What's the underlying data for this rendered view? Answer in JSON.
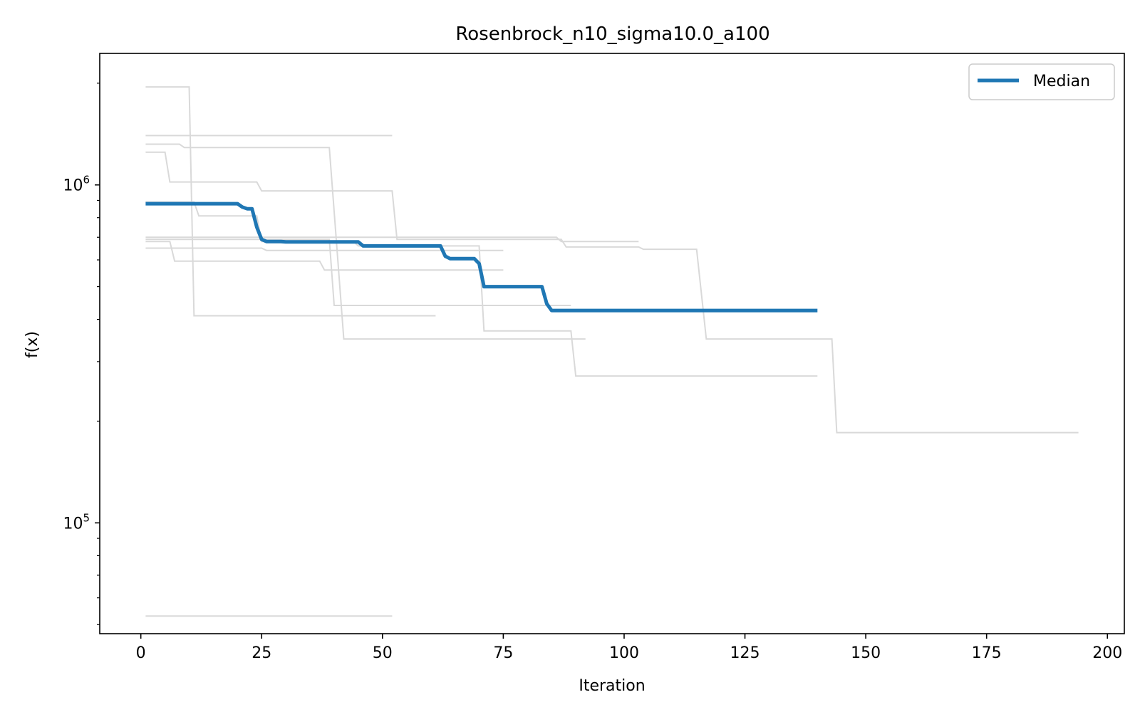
{
  "chart_data": {
    "type": "line",
    "title": "Rosenbrock_n10_sigma10.0_a100",
    "xlabel": "Iteration",
    "ylabel": "f(x)",
    "xscale": "linear",
    "yscale": "log",
    "xlim": [
      -8.5,
      203.5
    ],
    "ylim": [
      47000,
      2450000
    ],
    "xticks": [
      0,
      25,
      50,
      75,
      100,
      125,
      150,
      175,
      200
    ],
    "xtick_labels": [
      "0",
      "25",
      "50",
      "75",
      "100",
      "125",
      "150",
      "175",
      "200"
    ],
    "yticks": [
      100000,
      1000000
    ],
    "ytick_labels": [
      {
        "base": "10",
        "exp": "5"
      },
      {
        "base": "10",
        "exp": "6"
      }
    ],
    "grid": false,
    "legend": {
      "placement": "top-right",
      "entries": [
        "Median"
      ]
    },
    "colors": {
      "median": "#1f77b4",
      "runs": "#d9d9d9"
    },
    "median": {
      "name": "Median",
      "points": [
        [
          1,
          880000
        ],
        [
          20,
          880000
        ],
        [
          21,
          860000
        ],
        [
          22,
          850000
        ],
        [
          23,
          850000
        ],
        [
          24,
          750000
        ],
        [
          25,
          690000
        ],
        [
          26,
          680000
        ],
        [
          29,
          680000
        ],
        [
          30,
          678000
        ],
        [
          45,
          678000
        ],
        [
          46,
          660000
        ],
        [
          62,
          660000
        ],
        [
          63,
          615000
        ],
        [
          64,
          605000
        ],
        [
          69,
          605000
        ],
        [
          70,
          585000
        ],
        [
          71,
          500000
        ],
        [
          83,
          500000
        ],
        [
          84,
          445000
        ],
        [
          85,
          425000
        ],
        [
          140,
          425000
        ]
      ]
    },
    "runs": [
      {
        "points": [
          [
            1,
            1950000
          ],
          [
            10,
            1950000
          ],
          [
            11,
            410000
          ],
          [
            61,
            410000
          ]
        ]
      },
      {
        "points": [
          [
            1,
            1400000
          ],
          [
            52,
            1400000
          ]
        ]
      },
      {
        "points": [
          [
            1,
            1320000
          ],
          [
            8,
            1320000
          ],
          [
            9,
            1290000
          ],
          [
            39,
            1290000
          ],
          [
            42,
            350000
          ],
          [
            92,
            350000
          ]
        ]
      },
      {
        "points": [
          [
            1,
            1250000
          ],
          [
            5,
            1250000
          ],
          [
            6,
            1020000
          ],
          [
            24,
            1020000
          ],
          [
            25,
            960000
          ],
          [
            52,
            960000
          ],
          [
            53,
            690000
          ],
          [
            87,
            690000
          ],
          [
            88,
            655000
          ],
          [
            103,
            655000
          ],
          [
            104,
            645000
          ],
          [
            115,
            645000
          ],
          [
            117,
            350000
          ],
          [
            143,
            350000
          ],
          [
            144,
            185000
          ],
          [
            194,
            185000
          ]
        ]
      },
      {
        "points": [
          [
            1,
            890000
          ],
          [
            11,
            890000
          ],
          [
            12,
            810000
          ],
          [
            24,
            810000
          ],
          [
            25,
            680000
          ],
          [
            44,
            680000
          ],
          [
            45,
            660000
          ],
          [
            70,
            660000
          ],
          [
            71,
            370000
          ],
          [
            89,
            370000
          ],
          [
            90,
            272000
          ],
          [
            140,
            272000
          ]
        ]
      },
      {
        "points": [
          [
            1,
            700000
          ],
          [
            86,
            700000
          ],
          [
            87,
            680000
          ],
          [
            103,
            680000
          ]
        ]
      },
      {
        "points": [
          [
            1,
            690000
          ],
          [
            39,
            690000
          ],
          [
            40,
            440000
          ],
          [
            89,
            440000
          ]
        ]
      },
      {
        "points": [
          [
            1,
            680000
          ],
          [
            6,
            680000
          ],
          [
            7,
            595000
          ],
          [
            37,
            595000
          ],
          [
            38,
            560000
          ],
          [
            75,
            560000
          ]
        ]
      },
      {
        "points": [
          [
            1,
            650000
          ],
          [
            25,
            650000
          ],
          [
            26,
            640000
          ],
          [
            75,
            640000
          ]
        ]
      },
      {
        "points": [
          [
            1,
            53000
          ],
          [
            52,
            53000
          ]
        ]
      }
    ]
  }
}
